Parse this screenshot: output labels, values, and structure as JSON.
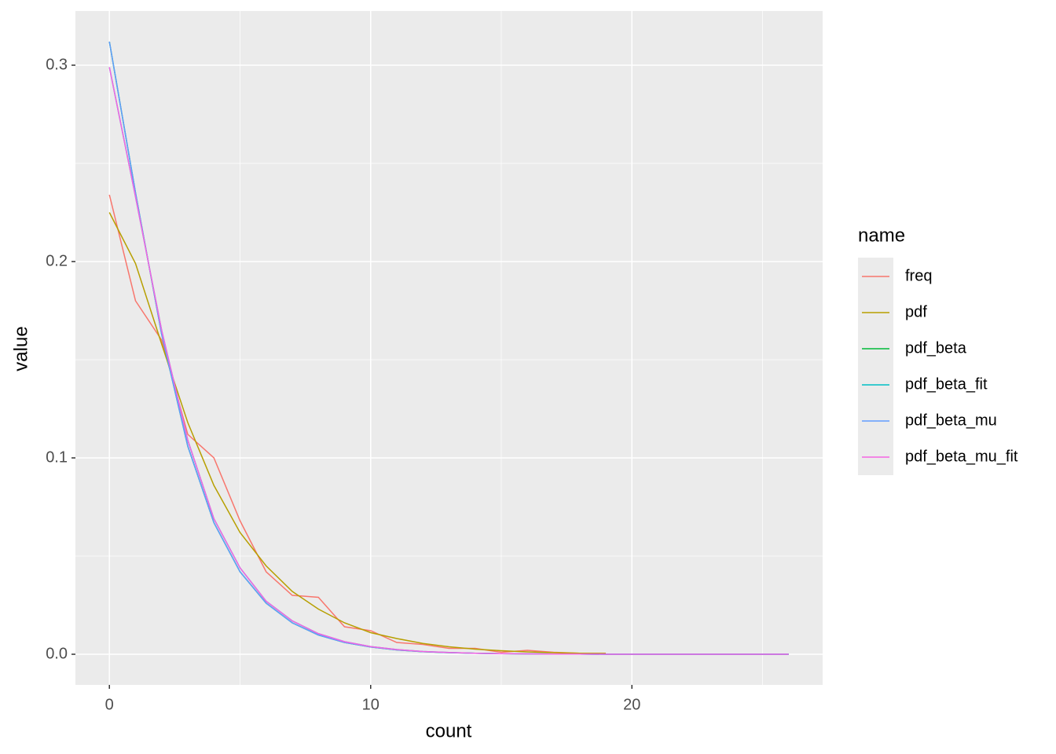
{
  "chart_data": {
    "type": "line",
    "x_label": "count",
    "y_label": "value",
    "legend_title": "name",
    "legend_position": "right",
    "x": [
      0,
      1,
      2,
      3,
      4,
      5,
      6,
      7,
      8,
      9,
      10,
      11,
      12,
      13,
      14,
      15,
      16,
      17,
      18,
      19,
      20,
      21,
      22,
      23,
      24,
      25,
      26
    ],
    "series": [
      {
        "name": "freq",
        "color": "#F8766D",
        "values": [
          0.234,
          0.18,
          0.16,
          0.112,
          0.1,
          0.068,
          0.042,
          0.03,
          0.029,
          0.014,
          0.012,
          0.006,
          0.005,
          0.003,
          0.003,
          0.001,
          0.002,
          0.001,
          0.0005,
          0.0005,
          null,
          null,
          null,
          null,
          null,
          null,
          null
        ]
      },
      {
        "name": "pdf",
        "color": "#B79F00",
        "values": [
          0.225,
          0.199,
          0.158,
          0.118,
          0.086,
          0.062,
          0.045,
          0.032,
          0.023,
          0.016,
          0.011,
          0.008,
          0.0055,
          0.0038,
          0.0026,
          0.0018,
          0.0012,
          0.0008,
          0.0005,
          0.0004,
          null,
          null,
          null,
          null,
          null,
          null,
          null
        ]
      },
      {
        "name": "pdf_beta",
        "color": "#00BA38",
        "values": [
          0.312,
          0.235,
          0.163,
          0.106,
          0.067,
          0.042,
          0.026,
          0.016,
          0.0098,
          0.006,
          0.0037,
          0.0022,
          0.0013,
          0.0008,
          0.0005,
          0.0003,
          0.0002,
          0.0001,
          0.0001,
          0,
          0,
          0,
          0,
          0,
          0,
          0,
          0
        ]
      },
      {
        "name": "pdf_beta_fit",
        "color": "#00BFC4",
        "values": [
          0.299,
          0.233,
          0.165,
          0.109,
          0.069,
          0.044,
          0.027,
          0.017,
          0.0105,
          0.0064,
          0.0039,
          0.0024,
          0.0014,
          0.0009,
          0.0005,
          0.0003,
          0.0002,
          0.0001,
          0.0001,
          0,
          0,
          0,
          0,
          0,
          0,
          0,
          0
        ]
      },
      {
        "name": "pdf_beta_mu",
        "color": "#619CFF",
        "values": [
          0.312,
          0.235,
          0.163,
          0.106,
          0.067,
          0.042,
          0.026,
          0.016,
          0.0098,
          0.006,
          0.0037,
          0.0022,
          0.0013,
          0.0008,
          0.0005,
          0.0003,
          0.0002,
          0.0001,
          0.0001,
          0,
          0,
          0,
          0,
          0,
          0,
          0,
          0
        ]
      },
      {
        "name": "pdf_beta_mu_fit",
        "color": "#F564E3",
        "values": [
          0.299,
          0.233,
          0.165,
          0.109,
          0.069,
          0.044,
          0.027,
          0.017,
          0.0105,
          0.0064,
          0.0039,
          0.0024,
          0.0014,
          0.0009,
          0.0005,
          0.0003,
          0.0002,
          0.0001,
          0.0001,
          0,
          0,
          0,
          0,
          0,
          0,
          0,
          0
        ]
      }
    ],
    "xlim": [
      -1.3,
      27.3
    ],
    "xticks": [
      0,
      10,
      20
    ],
    "xminor": [
      5,
      15,
      25
    ],
    "ylim": [
      -0.0156,
      0.3276
    ],
    "yticks": [
      {
        "value": 0,
        "label": "0.0"
      },
      0.1,
      0.2,
      0.3
    ],
    "yminor": [
      0.05,
      0.15,
      0.25
    ],
    "grid": true
  }
}
